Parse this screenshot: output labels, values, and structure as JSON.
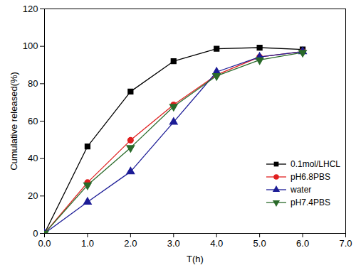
{
  "chart_data": {
    "type": "line",
    "xlabel": "T(h)",
    "ylabel": "Cumulative released(%)",
    "x": [
      0,
      1,
      2,
      3,
      4,
      5,
      6
    ],
    "series": [
      {
        "name": "0.1mol/LHCL",
        "color": "#000000",
        "marker": "square",
        "values": [
          0,
          46.5,
          75.8,
          92.0,
          98.7,
          99.3,
          98.3
        ]
      },
      {
        "name": "pH6.8PBS",
        "color": "#e02020",
        "marker": "circle",
        "values": [
          0,
          27.2,
          49.8,
          68.7,
          84.7,
          94.3,
          97.2
        ]
      },
      {
        "name": "water",
        "color": "#1c1c96",
        "marker": "triangle",
        "values": [
          0,
          16.8,
          33.0,
          59.5,
          86.3,
          94.3,
          97.2
        ]
      },
      {
        "name": "pH7.4PBS",
        "color": "#2a6a2a",
        "marker": "triangle-down",
        "values": [
          0,
          25.8,
          45.8,
          67.8,
          84.2,
          92.7,
          96.7
        ]
      }
    ],
    "xlim": [
      0,
      7
    ],
    "xticks": [
      0,
      1,
      2,
      3,
      4,
      5,
      6,
      7
    ],
    "ylim": [
      0,
      120
    ],
    "yticks": [
      0,
      20,
      40,
      60,
      80,
      100,
      120
    ],
    "grid": false,
    "legend": "right"
  }
}
